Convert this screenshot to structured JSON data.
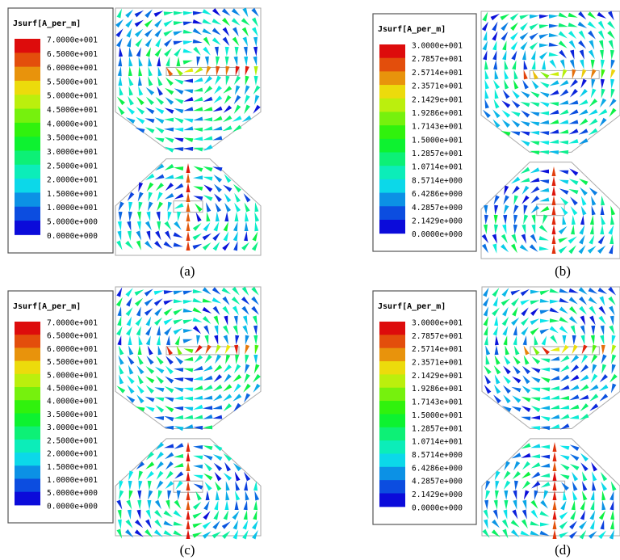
{
  "panels": [
    {
      "caption": "(a)",
      "legend": {
        "title": "Jsurf[A_per_m]",
        "labels": [
          "7.0000e+001",
          "6.5000e+001",
          "6.0000e+001",
          "5.5000e+001",
          "5.0000e+001",
          "4.5000e+001",
          "4.0000e+001",
          "3.5000e+001",
          "3.0000e+001",
          "2.5000e+001",
          "2.0000e+001",
          "1.5000e+001",
          "1.0000e+001",
          "5.0000e+000",
          "0.0000e+000"
        ]
      }
    },
    {
      "caption": "(b)",
      "legend": {
        "title": "Jsurf[A_per_m]",
        "labels": [
          "3.0000e+001",
          "2.7857e+001",
          "2.5714e+001",
          "2.3571e+001",
          "2.1429e+001",
          "1.9286e+001",
          "1.7143e+001",
          "1.5000e+001",
          "1.2857e+001",
          "1.0714e+001",
          "8.5714e+000",
          "6.4286e+000",
          "4.2857e+000",
          "2.1429e+000",
          "0.0000e+000"
        ]
      }
    },
    {
      "caption": "(c)",
      "legend": {
        "title": "Jsurf[A_per_m]",
        "labels": [
          "7.0000e+001",
          "6.5000e+001",
          "6.0000e+001",
          "5.5000e+001",
          "5.0000e+001",
          "4.5000e+001",
          "4.0000e+001",
          "3.5000e+001",
          "3.0000e+001",
          "2.5000e+001",
          "2.0000e+001",
          "1.5000e+001",
          "1.0000e+001",
          "5.0000e+000",
          "0.0000e+000"
        ]
      }
    },
    {
      "caption": "(d)",
      "legend": {
        "title": "Jsurf[A_per_m]",
        "labels": [
          "3.0000e+001",
          "2.7857e+001",
          "2.5714e+001",
          "2.3571e+001",
          "2.1429e+001",
          "1.9286e+001",
          "1.7143e+001",
          "1.5000e+001",
          "1.2857e+001",
          "1.0714e+001",
          "8.5714e+000",
          "6.4286e+000",
          "4.2857e+000",
          "2.1429e+000",
          "0.0000e+000"
        ]
      }
    }
  ]
}
